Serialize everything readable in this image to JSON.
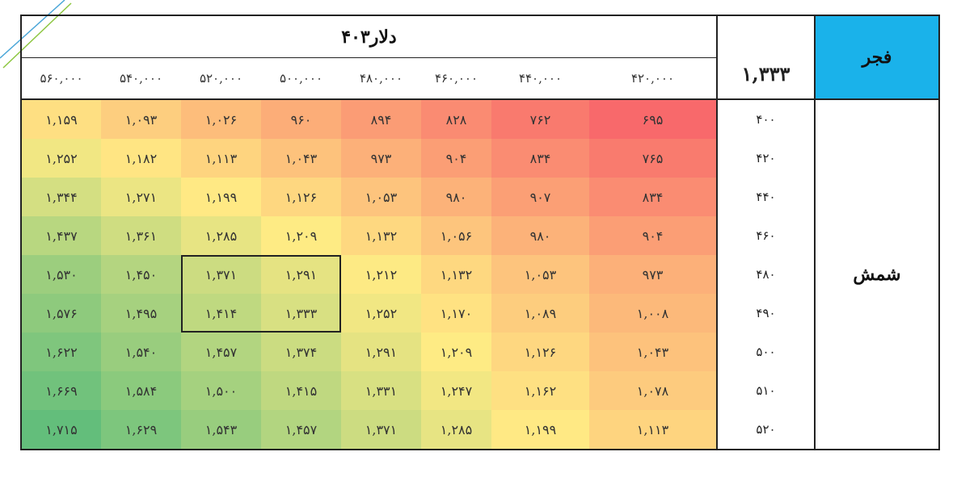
{
  "colors": {
    "header_fill": "#1ab2ea",
    "high": "#63be7b",
    "mid": "#ffeb84",
    "low": "#f8696b"
  },
  "header": {
    "title": "دلار۴۰۳",
    "corner_value": "۱,۳۳۳",
    "fajr_label": "فجر"
  },
  "row_group_label": "شمش",
  "chart_data": {
    "type": "heatmap",
    "title": "دلار۴۰۳",
    "columns": [
      "۵۶۰,۰۰۰",
      "۵۴۰,۰۰۰",
      "۵۲۰,۰۰۰",
      "۵۰۰,۰۰۰",
      "۴۸۰,۰۰۰",
      "۴۶۰,۰۰۰",
      "۴۴۰,۰۰۰",
      "۴۲۰,۰۰۰"
    ],
    "rows": [
      "۴۰۰",
      "۴۲۰",
      "۴۴۰",
      "۴۶۰",
      "۴۸۰",
      "۴۹۰",
      "۵۰۰",
      "۵۱۰",
      "۵۲۰"
    ],
    "values": [
      [
        1159,
        1093,
        1026,
        960,
        894,
        828,
        762,
        695
      ],
      [
        1252,
        1182,
        1113,
        1043,
        973,
        904,
        834,
        765
      ],
      [
        1344,
        1271,
        1199,
        1126,
        1053,
        980,
        907,
        834
      ],
      [
        1437,
        1361,
        1285,
        1209,
        1132,
        1056,
        980,
        904
      ],
      [
        1530,
        1450,
        1371,
        1291,
        1212,
        1132,
        1053,
        973
      ],
      [
        1576,
        1495,
        1414,
        1333,
        1252,
        1170,
        1089,
        1008
      ],
      [
        1622,
        1540,
        1457,
        1374,
        1291,
        1209,
        1126,
        1043
      ],
      [
        1669,
        1584,
        1500,
        1415,
        1331,
        1247,
        1162,
        1078
      ],
      [
        1715,
        1629,
        1543,
        1457,
        1371,
        1285,
        1199,
        1113
      ]
    ],
    "display": [
      [
        "۱,۱۵۹",
        "۱,۰۹۳",
        "۱,۰۲۶",
        "۹۶۰",
        "۸۹۴",
        "۸۲۸",
        "۷۶۲",
        "۶۹۵"
      ],
      [
        "۱,۲۵۲",
        "۱,۱۸۲",
        "۱,۱۱۳",
        "۱,۰۴۳",
        "۹۷۳",
        "۹۰۴",
        "۸۳۴",
        "۷۶۵"
      ],
      [
        "۱,۳۴۴",
        "۱,۲۷۱",
        "۱,۱۹۹",
        "۱,۱۲۶",
        "۱,۰۵۳",
        "۹۸۰",
        "۹۰۷",
        "۸۳۴"
      ],
      [
        "۱,۴۳۷",
        "۱,۳۶۱",
        "۱,۲۸۵",
        "۱,۲۰۹",
        "۱,۱۳۲",
        "۱,۰۵۶",
        "۹۸۰",
        "۹۰۴"
      ],
      [
        "۱,۵۳۰",
        "۱,۴۵۰",
        "۱,۳۷۱",
        "۱,۲۹۱",
        "۱,۲۱۲",
        "۱,۱۳۲",
        "۱,۰۵۳",
        "۹۷۳"
      ],
      [
        "۱,۵۷۶",
        "۱,۴۹۵",
        "۱,۴۱۴",
        "۱,۳۳۳",
        "۱,۲۵۲",
        "۱,۱۷۰",
        "۱,۰۸۹",
        "۱,۰۰۸"
      ],
      [
        "۱,۶۲۲",
        "۱,۵۴۰",
        "۱,۴۵۷",
        "۱,۳۷۴",
        "۱,۲۹۱",
        "۱,۲۰۹",
        "۱,۱۲۶",
        "۱,۰۴۳"
      ],
      [
        "۱,۶۶۹",
        "۱,۵۸۴",
        "۱,۵۰۰",
        "۱,۴۱۵",
        "۱,۳۳۱",
        "۱,۲۴۷",
        "۱,۱۶۲",
        "۱,۰۷۸"
      ],
      [
        "۱,۷۱۵",
        "۱,۶۲۹",
        "۱,۵۴۳",
        "۱,۴۵۷",
        "۱,۳۷۱",
        "۱,۲۸۵",
        "۱,۱۹۹",
        "۱,۱۱۳"
      ]
    ],
    "highlighted_block": {
      "rows": [
        "۴۸۰",
        "۴۹۰"
      ],
      "columns": [
        "۵۲۰,۰۰۰",
        "۵۰۰,۰۰۰"
      ]
    }
  }
}
